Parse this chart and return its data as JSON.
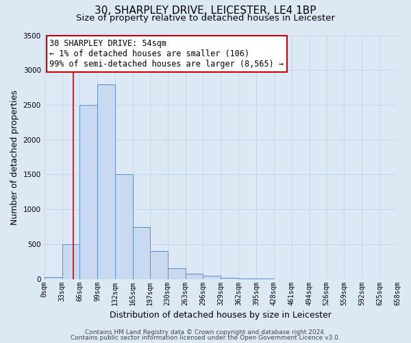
{
  "title_line1": "30, SHARPLEY DRIVE, LEICESTER, LE4 1BP",
  "title_line2": "Size of property relative to detached houses in Leicester",
  "xlabel": "Distribution of detached houses by size in Leicester",
  "ylabel": "Number of detached properties",
  "bin_edges": [
    0,
    33,
    66,
    99,
    132,
    165,
    197,
    230,
    263,
    296,
    329,
    362,
    395,
    428,
    461,
    494,
    526,
    559,
    592,
    625,
    658
  ],
  "bin_labels": [
    "0sqm",
    "33sqm",
    "66sqm",
    "99sqm",
    "132sqm",
    "165sqm",
    "197sqm",
    "230sqm",
    "263sqm",
    "296sqm",
    "329sqm",
    "362sqm",
    "395sqm",
    "428sqm",
    "461sqm",
    "494sqm",
    "526sqm",
    "559sqm",
    "592sqm",
    "625sqm",
    "658sqm"
  ],
  "bar_heights": [
    30,
    500,
    2500,
    2800,
    1500,
    750,
    400,
    150,
    80,
    50,
    20,
    10,
    5,
    0,
    0,
    0,
    0,
    0,
    0,
    0
  ],
  "bar_color": "#c9d9f0",
  "bar_edgecolor": "#5b8dd4",
  "vline_x": 54,
  "vline_color": "#cc0000",
  "ylim": [
    0,
    3500
  ],
  "annotation_text": "30 SHARPLEY DRIVE: 54sqm\n← 1% of detached houses are smaller (106)\n99% of semi-detached houses are larger (8,565) →",
  "annotation_box_edgecolor": "#cc0000",
  "annotation_box_facecolor": "#ffffff",
  "footer_line1": "Contains HM Land Registry data © Crown copyright and database right 2024.",
  "footer_line2": "Contains public sector information licensed under the Open Government Licence v3.0.",
  "background_color": "#dde8f5",
  "grid_color": "#c8d8ec",
  "title_fontsize": 11,
  "subtitle_fontsize": 9.5,
  "axis_label_fontsize": 9,
  "tick_fontsize": 7,
  "annotation_fontsize": 8.5,
  "footer_fontsize": 6.5,
  "yticks": [
    0,
    500,
    1000,
    1500,
    2000,
    2500,
    3000,
    3500
  ]
}
